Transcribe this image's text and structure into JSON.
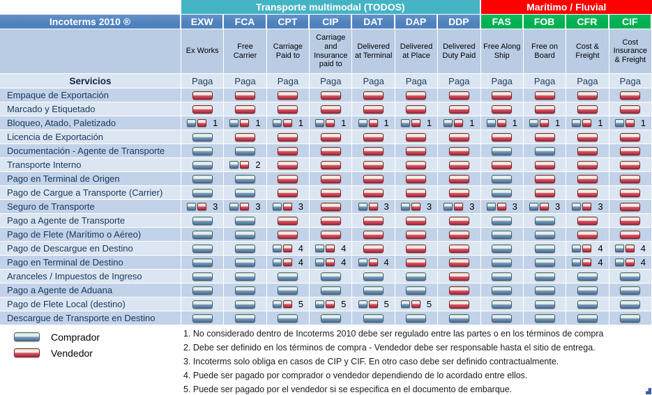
{
  "header": {
    "group_multimodal": "Transporte multimodal (TODOS)",
    "group_maritime": "Marítimo / Fluvial",
    "title": "Incoterms 2010 ®",
    "servicios_label": "Servicios",
    "paga_label": "Paga",
    "columns": [
      {
        "code": "EXW",
        "name": "Ex Works",
        "group": "multimodal"
      },
      {
        "code": "FCA",
        "name": "Free Carrier",
        "group": "multimodal"
      },
      {
        "code": "CPT",
        "name": "Carriage Paid to",
        "group": "multimodal"
      },
      {
        "code": "CIP",
        "name": "Carriage and Insurance paid to",
        "group": "multimodal"
      },
      {
        "code": "DAT",
        "name": "Delivered at Terminal",
        "group": "multimodal"
      },
      {
        "code": "DAP",
        "name": "Delivered at Place",
        "group": "multimodal"
      },
      {
        "code": "DDP",
        "name": "Delivered Duty Paid",
        "group": "multimodal"
      },
      {
        "code": "FAS",
        "name": "Free Along Ship",
        "group": "maritime"
      },
      {
        "code": "FOB",
        "name": "Free on Board",
        "group": "maritime"
      },
      {
        "code": "CFR",
        "name": "Cost & Freight",
        "group": "maritime"
      },
      {
        "code": "CIF",
        "name": "Cost Insurance & Freight",
        "group": "maritime"
      }
    ]
  },
  "cell_legend_key": {
    "C": "comprador",
    "V": "vendedor",
    "B#": "comprador-y-vendedor con nota #"
  },
  "rows": [
    {
      "service": "Empaque de Exportación",
      "cells": [
        "V",
        "V",
        "V",
        "V",
        "V",
        "V",
        "V",
        "V",
        "V",
        "V",
        "V"
      ]
    },
    {
      "service": "Marcado y Etiquetado",
      "cells": [
        "V",
        "V",
        "V",
        "V",
        "V",
        "V",
        "V",
        "V",
        "V",
        "V",
        "V"
      ]
    },
    {
      "service": "Bloqueo, Atado, Paletizado",
      "cells": [
        "B1",
        "B1",
        "B1",
        "B1",
        "B1",
        "B1",
        "B1",
        "B1",
        "B1",
        "B1",
        "B1"
      ]
    },
    {
      "service": "Licencia de Exportación",
      "cells": [
        "C",
        "V",
        "V",
        "V",
        "V",
        "V",
        "V",
        "V",
        "V",
        "V",
        "V"
      ]
    },
    {
      "service": "Documentación - Agente de Transporte",
      "cells": [
        "C",
        "C",
        "V",
        "V",
        "V",
        "V",
        "V",
        "C",
        "C",
        "V",
        "V"
      ]
    },
    {
      "service": "Transporte Interno",
      "cells": [
        "C",
        "B2",
        "V",
        "V",
        "V",
        "V",
        "V",
        "V",
        "V",
        "V",
        "V"
      ]
    },
    {
      "service": "Pago en Terminal de Origen",
      "cells": [
        "C",
        "C",
        "V",
        "V",
        "V",
        "V",
        "V",
        "C",
        "V",
        "V",
        "V"
      ]
    },
    {
      "service": "Pago de Cargue a Transporte (Carrier)",
      "cells": [
        "C",
        "C",
        "V",
        "V",
        "V",
        "V",
        "V",
        "C",
        "V",
        "V",
        "V"
      ]
    },
    {
      "service": "Seguro de Transporte",
      "cells": [
        "B3",
        "B3",
        "B3",
        "V",
        "B3",
        "B3",
        "B3",
        "B3",
        "B3",
        "B3",
        "V"
      ]
    },
    {
      "service": "Pago a Agente de Transporte",
      "cells": [
        "C",
        "C",
        "V",
        "V",
        "V",
        "V",
        "V",
        "C",
        "C",
        "V",
        "V"
      ]
    },
    {
      "service": "Pago de Flete (Marítimo o Aéreo)",
      "cells": [
        "C",
        "C",
        "V",
        "V",
        "V",
        "V",
        "V",
        "C",
        "C",
        "V",
        "V"
      ]
    },
    {
      "service": "Pago de Descargue en Destino",
      "cells": [
        "C",
        "C",
        "B4",
        "B4",
        "V",
        "V",
        "V",
        "C",
        "C",
        "B4",
        "B4"
      ]
    },
    {
      "service": "Pago en Terminal de Destino",
      "cells": [
        "C",
        "C",
        "B4",
        "B4",
        "B4",
        "V",
        "V",
        "C",
        "C",
        "B4",
        "B4"
      ]
    },
    {
      "service": "Aranceles / Impuestos de Ingreso",
      "cells": [
        "C",
        "C",
        "C",
        "C",
        "C",
        "C",
        "V",
        "C",
        "C",
        "C",
        "C"
      ]
    },
    {
      "service": "Pago a Agente de Aduana",
      "cells": [
        "C",
        "C",
        "C",
        "C",
        "C",
        "C",
        "V",
        "C",
        "C",
        "C",
        "C"
      ]
    },
    {
      "service": "Pago de Flete Local (destino)",
      "cells": [
        "C",
        "C",
        "B5",
        "B5",
        "B5",
        "B5",
        "V",
        "C",
        "C",
        "C",
        "C"
      ]
    },
    {
      "service": "Descargue de Transporte en Destino",
      "cells": [
        "C",
        "C",
        "C",
        "C",
        "C",
        "C",
        "C",
        "C",
        "C",
        "C",
        "C"
      ]
    }
  ],
  "legend": {
    "items": [
      {
        "label": "Comprador",
        "party": "comprador"
      },
      {
        "label": "Vendedor",
        "party": "vendedor"
      }
    ]
  },
  "notes": [
    "1. No considerado dentro de Incoterms 2010 debe ser regulado entre las partes o en los términos de compra",
    "2. Debe ser definido en los términos de compra - Vendedor debe ser responsable hasta el sitio de entrega.",
    "3. Incoterms solo obliga en casos de CIP y CIF. En otro caso debe ser definido contractualmente.",
    "4. Puede ser pagado por comprador o vendedor dependiendo de lo acordado entre ellos.",
    "5. Puede ser pagado por el vendedor si se especifica en el documento de embarque."
  ],
  "colors": {
    "header_blue": "#4f81bd",
    "multimodal_teal": "#44b3c4",
    "maritime_red": "#fe0000",
    "maritime_green": "#00b050",
    "description_band": "#b9cce4",
    "row_dark": "#c2d2e8",
    "row_light": "#dce6f2",
    "comprador_pill": "#4d7094",
    "vendedor_pill": "#b12836"
  }
}
